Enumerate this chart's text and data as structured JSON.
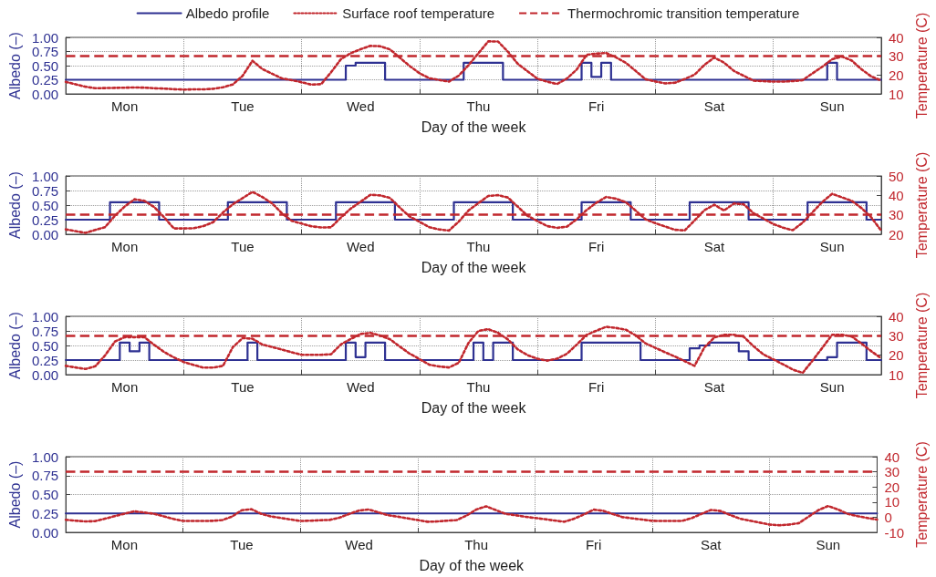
{
  "chart_data": [
    {
      "type": "line",
      "xlabel": "Day of the week",
      "ylabel": "Albedo (–)",
      "y2label": "Temperature (C)",
      "categories": [
        null,
        null,
        null,
        null,
        null,
        null,
        "Mon",
        null,
        null,
        null,
        null,
        null,
        null,
        null,
        null,
        null,
        null,
        null,
        "Tue",
        null,
        null,
        null,
        null,
        null,
        null,
        null,
        null,
        null,
        null,
        null,
        "Wed",
        null,
        null,
        null,
        null,
        null,
        null,
        null,
        null,
        null,
        null,
        null,
        "Thu",
        null,
        null,
        null,
        null,
        null,
        null,
        null,
        null,
        null,
        null,
        null,
        "Fri",
        null,
        null,
        null,
        null,
        null,
        null,
        null,
        null,
        null,
        null,
        null,
        "Sat",
        null,
        null,
        null,
        null,
        null,
        null,
        null,
        null,
        null,
        null,
        null,
        "Sun",
        null,
        null,
        null,
        null,
        null
      ],
      "ylim": [
        0,
        1
      ],
      "yticks": [
        {
          "value": 0,
          "label": "0.00"
        },
        {
          "value": 0.25,
          "label": "0.25"
        },
        {
          "value": 0.5,
          "label": "0.50"
        },
        {
          "value": 0.75,
          "label": "0.75"
        },
        {
          "value": 1,
          "label": "1.00"
        }
      ],
      "y2lim": [
        10,
        40
      ],
      "y2ticks": [
        10,
        20,
        30,
        40
      ],
      "grid": true,
      "legend": "top",
      "marker": "none",
      "series": [
        {
          "name": "Albedo profile",
          "type": "step",
          "color": "#2e3192",
          "line_style": "solid",
          "values": [
            0.25,
            0.25,
            0.25,
            0.25,
            0.25,
            0.25,
            0.25,
            0.25,
            0.25,
            0.25,
            0.25,
            0.25,
            0.25,
            0.25,
            0.25,
            0.25,
            0.25,
            0.25,
            0.25,
            0.25,
            0.25,
            0.25,
            0.25,
            0.25,
            0.25,
            0.25,
            0.25,
            0.25,
            0.25,
            0.5,
            0.55,
            0.55,
            0.55,
            0.25,
            0.25,
            0.25,
            0.25,
            0.25,
            0.25,
            0.25,
            0.25,
            0.55,
            0.55,
            0.55,
            0.55,
            0.25,
            0.25,
            0.25,
            0.25,
            0.25,
            0.25,
            0.25,
            0.25,
            0.55,
            0.3,
            0.55,
            0.25,
            0.25,
            0.25,
            0.25,
            0.25,
            0.25,
            0.25,
            0.25,
            0.25,
            0.25,
            0.25,
            0.25,
            0.25,
            0.25,
            0.25,
            0.25,
            0.25,
            0.25,
            0.25,
            0.25,
            0.25,
            0.25,
            0.55,
            0.25,
            0.25,
            0.25,
            0.25,
            0.25
          ]
        },
        {
          "name": "Surface roof temperature",
          "color": "#c1272d",
          "line_style": "dotted",
          "axis": "y2",
          "values": [
            16.4,
            15.1,
            13.8,
            13,
            13.1,
            13.2,
            13.3,
            13.4,
            13.3,
            13,
            12.8,
            12.5,
            12.3,
            12.4,
            12.4,
            12.7,
            13.5,
            15,
            19.6,
            27.6,
            23.2,
            20.7,
            18.2,
            17.3,
            16.2,
            14.9,
            15.2,
            21.5,
            28.4,
            31.6,
            33.7,
            35.5,
            35.3,
            33.6,
            29.2,
            24.8,
            21,
            18.3,
            17.4,
            16.5,
            19.7,
            25.3,
            31.6,
            37.9,
            37.8,
            32.4,
            26,
            22,
            18.1,
            16.5,
            15.2,
            18.1,
            22.9,
            30.7,
            31.4,
            31.7,
            29.4,
            26.5,
            22.2,
            17.8,
            16.6,
            15.6,
            15.9,
            17.9,
            20.2,
            25.4,
            29.3,
            26.6,
            22.2,
            19.6,
            17,
            16.8,
            16.5,
            16.5,
            16.8,
            17.3,
            20.9,
            24.4,
            28.4,
            29.8,
            27.7,
            23,
            19.2,
            17.1
          ]
        }
      ],
      "ref_lines": [
        {
          "axis": "y2",
          "value": 30,
          "label": "Thermochromic transition temperature",
          "color": "#c1272d",
          "line_style": "dashed"
        }
      ]
    },
    {
      "type": "line",
      "xlabel": "Day of the week",
      "ylabel": "Albedo (–)",
      "y2label": "Temperature (C)",
      "categories": [
        null,
        null,
        null,
        null,
        null,
        null,
        "Mon",
        null,
        null,
        null,
        null,
        null,
        null,
        null,
        null,
        null,
        null,
        null,
        "Tue",
        null,
        null,
        null,
        null,
        null,
        null,
        null,
        null,
        null,
        null,
        null,
        "Wed",
        null,
        null,
        null,
        null,
        null,
        null,
        null,
        null,
        null,
        null,
        null,
        "Thu",
        null,
        null,
        null,
        null,
        null,
        null,
        null,
        null,
        null,
        null,
        null,
        "Fri",
        null,
        null,
        null,
        null,
        null,
        null,
        null,
        null,
        null,
        null,
        null,
        "Sat",
        null,
        null,
        null,
        null,
        null,
        null,
        null,
        null,
        null,
        null,
        null,
        "Sun",
        null,
        null,
        null,
        null,
        null
      ],
      "ylim": [
        0,
        1
      ],
      "yticks": [
        {
          "value": 0,
          "label": "0.00"
        },
        {
          "value": 0.25,
          "label": "0.25"
        },
        {
          "value": 0.5,
          "label": "0.50"
        },
        {
          "value": 0.75,
          "label": "0.75"
        },
        {
          "value": 1,
          "label": "1.00"
        }
      ],
      "y2lim": [
        20,
        50
      ],
      "y2ticks": [
        20,
        30,
        40,
        50
      ],
      "grid": true,
      "marker": "none",
      "series": [
        {
          "type": "step",
          "color": "#2e3192",
          "line_style": "solid",
          "values": [
            0.25,
            0.25,
            0.25,
            0.25,
            0.25,
            0.55,
            0.55,
            0.55,
            0.55,
            0.55,
            0.25,
            0.25,
            0.25,
            0.25,
            0.25,
            0.25,
            0.25,
            0.55,
            0.55,
            0.55,
            0.55,
            0.55,
            0.55,
            0.25,
            0.25,
            0.25,
            0.25,
            0.25,
            0.55,
            0.55,
            0.55,
            0.55,
            0.55,
            0.55,
            0.25,
            0.25,
            0.25,
            0.25,
            0.25,
            0.25,
            0.55,
            0.55,
            0.55,
            0.55,
            0.55,
            0.55,
            0.25,
            0.25,
            0.25,
            0.25,
            0.25,
            0.25,
            0.25,
            0.55,
            0.55,
            0.55,
            0.55,
            0.55,
            0.25,
            0.25,
            0.25,
            0.25,
            0.25,
            0.25,
            0.55,
            0.55,
            0.55,
            0.55,
            0.55,
            0.55,
            0.25,
            0.25,
            0.25,
            0.25,
            0.25,
            0.25,
            0.55,
            0.55,
            0.55,
            0.55,
            0.55,
            0.55,
            0.25,
            0.25
          ]
        },
        {
          "color": "#c1272d",
          "line_style": "dotted",
          "axis": "y2",
          "values": [
            22.5,
            21.6,
            20.7,
            22.2,
            23.7,
            29.5,
            34.3,
            38,
            37.2,
            34,
            28.8,
            23,
            23,
            23.1,
            24.2,
            26.2,
            31.2,
            35.4,
            38.6,
            41.8,
            39.2,
            35.9,
            30.8,
            26.9,
            25.5,
            24.1,
            23.5,
            23.6,
            28.6,
            33.2,
            36.7,
            40.3,
            40,
            38.7,
            33.7,
            29.1,
            26.4,
            23.6,
            22.5,
            21.9,
            26.5,
            32.3,
            36,
            39.7,
            40.1,
            38.9,
            34.2,
            29.5,
            26.8,
            24.2,
            23.3,
            23.9,
            27.7,
            32.4,
            36.2,
            39.2,
            38.3,
            36.5,
            32.2,
            27.7,
            25.7,
            24,
            22.3,
            22,
            27.1,
            32.4,
            35.2,
            32.2,
            35.8,
            35.4,
            30.8,
            28.1,
            25.3,
            23.4,
            22.1,
            26,
            31.3,
            36.6,
            40.8,
            39,
            37.2,
            33.4,
            28.6,
            21.8
          ]
        }
      ],
      "ref_lines": [
        {
          "axis": "y2",
          "value": 30,
          "color": "#c1272d",
          "line_style": "dashed"
        }
      ]
    },
    {
      "type": "line",
      "xlabel": "Day of the week",
      "ylabel": "Albedo (–)",
      "y2label": "Temperature (C)",
      "categories": [
        null,
        null,
        null,
        null,
        null,
        null,
        "Mon",
        null,
        null,
        null,
        null,
        null,
        null,
        null,
        null,
        null,
        null,
        null,
        "Tue",
        null,
        null,
        null,
        null,
        null,
        null,
        null,
        null,
        null,
        null,
        null,
        "Wed",
        null,
        null,
        null,
        null,
        null,
        null,
        null,
        null,
        null,
        null,
        null,
        "Thu",
        null,
        null,
        null,
        null,
        null,
        null,
        null,
        null,
        null,
        null,
        null,
        "Fri",
        null,
        null,
        null,
        null,
        null,
        null,
        null,
        null,
        null,
        null,
        null,
        "Sat",
        null,
        null,
        null,
        null,
        null,
        null,
        null,
        null,
        null,
        null,
        null,
        "Sun",
        null,
        null,
        null,
        null,
        null
      ],
      "ylim": [
        0,
        1
      ],
      "yticks": [
        {
          "value": 0,
          "label": "0.00"
        },
        {
          "value": 0.25,
          "label": "0.25"
        },
        {
          "value": 0.5,
          "label": "0.50"
        },
        {
          "value": 0.75,
          "label": "0.75"
        },
        {
          "value": 1,
          "label": "1.00"
        }
      ],
      "y2lim": [
        10,
        40
      ],
      "y2ticks": [
        10,
        20,
        30,
        40
      ],
      "grid": true,
      "marker": "none",
      "series": [
        {
          "type": "step",
          "color": "#2e3192",
          "line_style": "solid",
          "values": [
            0.25,
            0.25,
            0.25,
            0.25,
            0.25,
            0.25,
            0.55,
            0.4,
            0.55,
            0.25,
            0.25,
            0.25,
            0.25,
            0.25,
            0.25,
            0.25,
            0.25,
            0.25,
            0.25,
            0.55,
            0.25,
            0.25,
            0.25,
            0.25,
            0.25,
            0.25,
            0.25,
            0.25,
            0.25,
            0.55,
            0.3,
            0.55,
            0.55,
            0.25,
            0.25,
            0.25,
            0.25,
            0.25,
            0.25,
            0.25,
            0.25,
            0.25,
            0.55,
            0.25,
            0.55,
            0.55,
            0.25,
            0.25,
            0.25,
            0.25,
            0.25,
            0.25,
            0.25,
            0.55,
            0.55,
            0.55,
            0.55,
            0.55,
            0.55,
            0.25,
            0.25,
            0.25,
            0.25,
            0.25,
            0.45,
            0.5,
            0.55,
            0.55,
            0.55,
            0.4,
            0.25,
            0.25,
            0.25,
            0.25,
            0.25,
            0.25,
            0.25,
            0.25,
            0.3,
            0.55,
            0.55,
            0.55,
            0.25,
            0.25
          ]
        },
        {
          "color": "#c1272d",
          "line_style": "dotted",
          "axis": "y2",
          "values": [
            14.5,
            13.7,
            12.9,
            14.3,
            19.9,
            27,
            29.3,
            29.3,
            29.3,
            25.3,
            21.7,
            18.9,
            16.5,
            15,
            13.6,
            13.6,
            14.5,
            24.1,
            28.8,
            28.5,
            25.5,
            24.2,
            22.9,
            21.5,
            20.2,
            20.2,
            20.2,
            20.5,
            25.5,
            28.3,
            30.9,
            31.5,
            30.1,
            28.2,
            24.4,
            20.8,
            18,
            15.1,
            14.2,
            13.7,
            16.1,
            26.4,
            32.5,
            33.4,
            31.5,
            28.1,
            23,
            20,
            18.2,
            17.2,
            18.2,
            20.7,
            25.4,
            30.4,
            32.6,
            34.6,
            34,
            33.1,
            30.2,
            26.1,
            23.8,
            21.5,
            19.3,
            16.9,
            14.5,
            24,
            29.1,
            30.5,
            30.5,
            29.5,
            24.6,
            20.4,
            17.9,
            15.3,
            12.6,
            10.9,
            17.2,
            23.8,
            30.5,
            30.5,
            29.6,
            25.9,
            22,
            18.4
          ]
        }
      ],
      "ref_lines": [
        {
          "axis": "y2",
          "value": 30,
          "color": "#c1272d",
          "line_style": "dashed"
        }
      ]
    },
    {
      "type": "line",
      "xlabel": "Day of the week",
      "ylabel": "Albedo (–)",
      "y2label": "Temperature (C)",
      "categories": [
        null,
        null,
        null,
        null,
        null,
        null,
        "Mon",
        null,
        null,
        null,
        null,
        null,
        null,
        null,
        null,
        null,
        null,
        null,
        "Tue",
        null,
        null,
        null,
        null,
        null,
        null,
        null,
        null,
        null,
        null,
        null,
        "Wed",
        null,
        null,
        null,
        null,
        null,
        null,
        null,
        null,
        null,
        null,
        null,
        "Thu",
        null,
        null,
        null,
        null,
        null,
        null,
        null,
        null,
        null,
        null,
        null,
        "Fri",
        null,
        null,
        null,
        null,
        null,
        null,
        null,
        null,
        null,
        null,
        null,
        "Sat",
        null,
        null,
        null,
        null,
        null,
        null,
        null,
        null,
        null,
        null,
        null,
        "Sun",
        null,
        null,
        null,
        null,
        null
      ],
      "ylim": [
        0,
        1
      ],
      "yticks": [
        {
          "value": 0,
          "label": "0.00"
        },
        {
          "value": 0.25,
          "label": "0.25"
        },
        {
          "value": 0.5,
          "label": "0.50"
        },
        {
          "value": 0.75,
          "label": "0.75"
        },
        {
          "value": 1,
          "label": "1.00"
        }
      ],
      "y2lim": [
        -10,
        40
      ],
      "y2ticks": [
        -10,
        0,
        10,
        20,
        30,
        40
      ],
      "grid": true,
      "marker": "none",
      "series": [
        {
          "type": "step",
          "color": "#2e3192",
          "line_style": "solid",
          "values": [
            0.25,
            0.25,
            0.25,
            0.25,
            0.25,
            0.25,
            0.25,
            0.25,
            0.25,
            0.25,
            0.25,
            0.25,
            0.25,
            0.25,
            0.25,
            0.25,
            0.25,
            0.25,
            0.25,
            0.25,
            0.25,
            0.25,
            0.25,
            0.25,
            0.25,
            0.25,
            0.25,
            0.25,
            0.25,
            0.25,
            0.25,
            0.25,
            0.25,
            0.25,
            0.25,
            0.25,
            0.25,
            0.25,
            0.25,
            0.25,
            0.25,
            0.25,
            0.25,
            0.25,
            0.25,
            0.25,
            0.25,
            0.25,
            0.25,
            0.25,
            0.25,
            0.25,
            0.25,
            0.25,
            0.25,
            0.25,
            0.25,
            0.25,
            0.25,
            0.25,
            0.25,
            0.25,
            0.25,
            0.25,
            0.25,
            0.25,
            0.25,
            0.25,
            0.25,
            0.25,
            0.25,
            0.25,
            0.25,
            0.25,
            0.25,
            0.25,
            0.25,
            0.25,
            0.25,
            0.25,
            0.25,
            0.25,
            0.25,
            0.25
          ]
        },
        {
          "color": "#c1272d",
          "line_style": "dotted",
          "axis": "y2",
          "values": [
            -1.7,
            -2.3,
            -2.8,
            -2.6,
            -1,
            0.7,
            2.3,
            3.9,
            3.1,
            2.3,
            0.6,
            -1.1,
            -2.5,
            -2.5,
            -2.5,
            -2.4,
            -1.9,
            0.4,
            4.6,
            5.3,
            2.2,
            0.5,
            -0.5,
            -1.5,
            -2.5,
            -2.3,
            -2,
            -1.8,
            -0.3,
            2.2,
            4.4,
            5.1,
            3.2,
            1.3,
            0.3,
            -0.8,
            -1.9,
            -3,
            -2.8,
            -2.3,
            -1.9,
            1.1,
            5.1,
            7.2,
            4.7,
            2.2,
            1.3,
            0.3,
            -0.5,
            -1.3,
            -2.2,
            -3,
            -1,
            1.8,
            5,
            4.2,
            2,
            0,
            -0.8,
            -1.6,
            -2.4,
            -2.5,
            -2.5,
            -2.5,
            -0.7,
            2.1,
            4.8,
            4.1,
            1.4,
            -1,
            -2.3,
            -3.6,
            -4.9,
            -5.3,
            -4.9,
            -3.9,
            0.4,
            4.7,
            7.4,
            5.1,
            2.2,
            0.7,
            -0.5,
            -1.6
          ]
        }
      ],
      "ref_lines": [
        {
          "axis": "y2",
          "value": 30,
          "color": "#c1272d",
          "line_style": "dashed"
        }
      ]
    }
  ]
}
